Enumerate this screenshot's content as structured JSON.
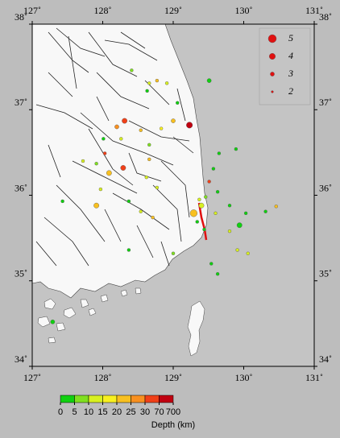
{
  "chart_data": {
    "type": "scatter",
    "xlim": [
      127,
      131
    ],
    "ylim": [
      34,
      38
    ],
    "xticks": [
      {
        "value": 127,
        "label": "127˚"
      },
      {
        "value": 128,
        "label": "128˚"
      },
      {
        "value": 129,
        "label": "129˚"
      },
      {
        "value": 130,
        "label": "130˚"
      },
      {
        "value": 131,
        "label": "131˚"
      }
    ],
    "yticks": [
      {
        "value": 34,
        "label": "34˚"
      },
      {
        "value": 35,
        "label": "35˚"
      },
      {
        "value": 36,
        "label": "36˚"
      },
      {
        "value": 37,
        "label": "37˚"
      },
      {
        "value": 38,
        "label": "38˚"
      }
    ],
    "points": {
      "lon": [
        129.51,
        128.41,
        128.66,
        128.77,
        128.91,
        128.63,
        129.06,
        129.23,
        129.0,
        128.31,
        128.2,
        128.54,
        128.83,
        128.01,
        128.03,
        128.26,
        128.66,
        127.72,
        127.91,
        128.09,
        128.29,
        128.66,
        128.62,
        128.77,
        127.97,
        127.91,
        127.43,
        128.37,
        128.54,
        128.71,
        128.37,
        129.0,
        129.29,
        129.4,
        129.34,
        129.46,
        129.51,
        129.57,
        129.65,
        129.89,
        129.63,
        129.8,
        129.6,
        129.94,
        130.03,
        129.8,
        130.31,
        130.46,
        130.06,
        129.91,
        129.63,
        129.54,
        127.29,
        129.44,
        129.37
      ],
      "lat": [
        37.34,
        37.46,
        37.31,
        37.34,
        37.31,
        37.22,
        37.08,
        36.82,
        36.87,
        36.87,
        36.8,
        36.76,
        36.78,
        36.66,
        36.49,
        36.66,
        36.59,
        36.4,
        36.37,
        36.26,
        36.32,
        36.42,
        36.21,
        36.09,
        36.07,
        35.88,
        35.93,
        35.93,
        35.81,
        35.74,
        35.36,
        35.32,
        35.79,
        35.88,
        35.69,
        35.98,
        36.16,
        36.31,
        36.49,
        36.54,
        36.04,
        35.88,
        35.79,
        35.65,
        35.79,
        35.58,
        35.81,
        35.87,
        35.32,
        35.36,
        35.08,
        35.2,
        34.52,
        35.6,
        35.95
      ],
      "depth": [
        3,
        8,
        12,
        20,
        12,
        3,
        4,
        100,
        22,
        35,
        25,
        20,
        15,
        3,
        40,
        12,
        5,
        12,
        5,
        22,
        40,
        24,
        14,
        14,
        13,
        22,
        4,
        4,
        14,
        22,
        4,
        5,
        23,
        12,
        4,
        5,
        40,
        4,
        3,
        4,
        4,
        4,
        12,
        4,
        4,
        10,
        4,
        20,
        10,
        12,
        4,
        4,
        4,
        3,
        14
      ],
      "magnitude": [
        3,
        2.5,
        2.5,
        2.5,
        2.5,
        2.5,
        2.5,
        4,
        3,
        3.5,
        3,
        2.5,
        2.5,
        2.5,
        2.5,
        2.5,
        2.5,
        2.5,
        2.5,
        3.5,
        3.5,
        2.5,
        2.5,
        2.5,
        2.5,
        3.5,
        2.5,
        2.5,
        2.5,
        2.5,
        2.5,
        2.5,
        4.5,
        3.5,
        2.5,
        2.5,
        2.5,
        2.5,
        2.5,
        2.5,
        2.5,
        2.5,
        2.5,
        3.5,
        2.5,
        2.5,
        2.5,
        2.5,
        2.5,
        2.5,
        2.5,
        2.5,
        3,
        2.5,
        2.5
      ]
    },
    "magnitude_legend": [
      5,
      4,
      3,
      2
    ],
    "depth_scale": {
      "ticks": [
        0,
        5,
        10,
        15,
        20,
        25,
        30,
        70,
        700
      ],
      "colors": [
        "#10d010",
        "#80e020",
        "#d8f020",
        "#f8f020",
        "#f8c020",
        "#f89020",
        "#f04018",
        "#c00010"
      ],
      "label": "Depth (km)"
    }
  }
}
